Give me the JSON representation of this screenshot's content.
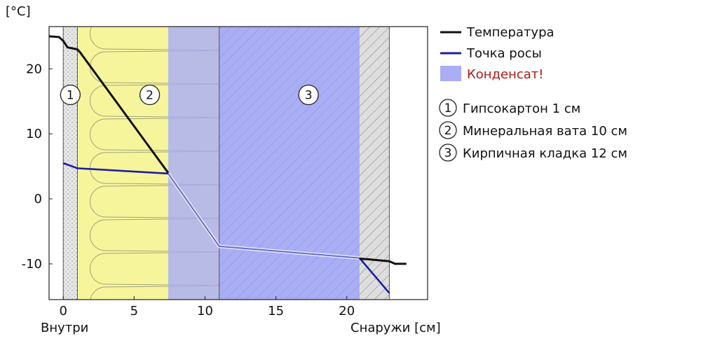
{
  "chart_data": {
    "type": "line",
    "title": "",
    "ylabel": "[°C]",
    "xlabel": "Снаружи [см]",
    "x_inner_label": "Внутри",
    "xlim": [
      -1,
      25.7
    ],
    "ylim": [
      -15.5,
      26.5
    ],
    "x_ticks": [
      0,
      5,
      10,
      15,
      20
    ],
    "y_ticks": [
      20,
      10,
      0,
      -10
    ],
    "layers": [
      {
        "id": "1",
        "name": "Гипсокартон 1 см",
        "x": [
          0,
          1
        ],
        "fill": "#e2e2e2",
        "pattern": "dots"
      },
      {
        "id": "2",
        "name": "Минеральная вата 10 см",
        "x": [
          1,
          11
        ],
        "fill": "#f6f59c",
        "pattern": "wool"
      },
      {
        "id": "3",
        "name": "Кирпичная кладка 12 см",
        "x": [
          11,
          23
        ],
        "fill": "#dcdcdc",
        "pattern": "hatch"
      }
    ],
    "condensation_zone": {
      "x": [
        7.4,
        20.9
      ],
      "color": "#a9aef5"
    },
    "series": [
      {
        "name": "Температура",
        "color": "#111111",
        "points": [
          [
            -1,
            25
          ],
          [
            -0.3,
            24.9
          ],
          [
            0,
            24.3
          ],
          [
            0.3,
            23.3
          ],
          [
            1,
            23.0
          ],
          [
            1.2,
            22.5
          ],
          [
            7.4,
            4.0
          ]
        ],
        "outside_points": [
          [
            20.9,
            -9.2
          ],
          [
            21.5,
            -9.3
          ],
          [
            23,
            -9.6
          ],
          [
            23.4,
            -10.0
          ],
          [
            24.2,
            -10.0
          ]
        ]
      },
      {
        "name": "Точка росы",
        "color": "#1f1fa0",
        "points": [
          [
            0,
            5.5
          ],
          [
            1,
            4.7
          ],
          [
            7.4,
            3.9
          ]
        ],
        "condensation_points": [
          [
            7.4,
            3.9
          ],
          [
            11,
            -7.3
          ],
          [
            20.9,
            -9.1
          ]
        ],
        "outside_points": [
          [
            20.9,
            -9.1
          ],
          [
            23,
            -14.5
          ]
        ]
      }
    ],
    "legend": {
      "position": "right",
      "items": [
        {
          "label": "Температура",
          "type": "line",
          "color": "#111111"
        },
        {
          "label": "Точка росы",
          "type": "line",
          "color": "#1f1fa0"
        },
        {
          "label": "Конденсат!",
          "type": "patch",
          "color": "#a9aef5",
          "text_color": "#b01818"
        }
      ]
    },
    "layer_legend": [
      {
        "num": "1",
        "label": "Гипсокартон 1 см"
      },
      {
        "num": "2",
        "label": "Минеральная вата 10 см"
      },
      {
        "num": "3",
        "label": "Кирпичная кладка 12 см"
      }
    ],
    "grid": false
  }
}
